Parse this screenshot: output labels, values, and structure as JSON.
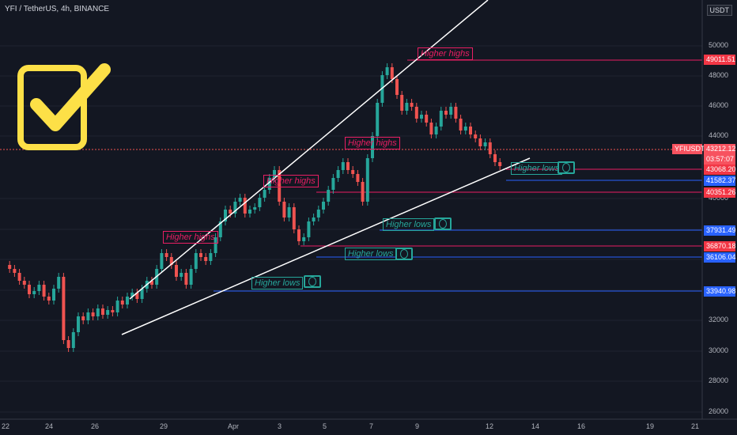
{
  "header": {
    "symbol": "YFI / TetherUS, 4h, BINANCE",
    "currency": "USDT"
  },
  "price_axis": [
    "50000",
    "48000",
    "46000",
    "44000",
    "40000",
    "38000",
    "36000",
    "34000",
    "32000",
    "30000",
    "28000",
    "26000"
  ],
  "price_tags": {
    "t49011": "49011.51",
    "t_sym": "YFIUSDT",
    "t43212": "43212.12",
    "t_cd": "03:57:07",
    "t43068": "43068.20",
    "t41582": "41582.37",
    "t40351": "40351.26",
    "t37931": "37931.49",
    "t36870": "36870.18",
    "t36106": "36106.04",
    "t33940": "33940.98"
  },
  "time_axis": [
    "22",
    "24",
    "26",
    "29",
    "Apr",
    "3",
    "5",
    "7",
    "9",
    "12",
    "14",
    "16",
    "19",
    "21"
  ],
  "annotations": {
    "hh1": "Higher highs",
    "hh2": "Higher highs",
    "hh3": "Higher highs",
    "hh4": "Higher highs",
    "hl1": "Higher lows",
    "hl2": "Higher lows",
    "hl3": "Higher lows",
    "hl4": "Higher lows"
  },
  "colors": {
    "bg": "#131722",
    "up": "#26a69a",
    "down": "#ef5350",
    "check": "#fde047"
  },
  "icons": {
    "check": "check-icon",
    "money": "money-icon"
  }
}
